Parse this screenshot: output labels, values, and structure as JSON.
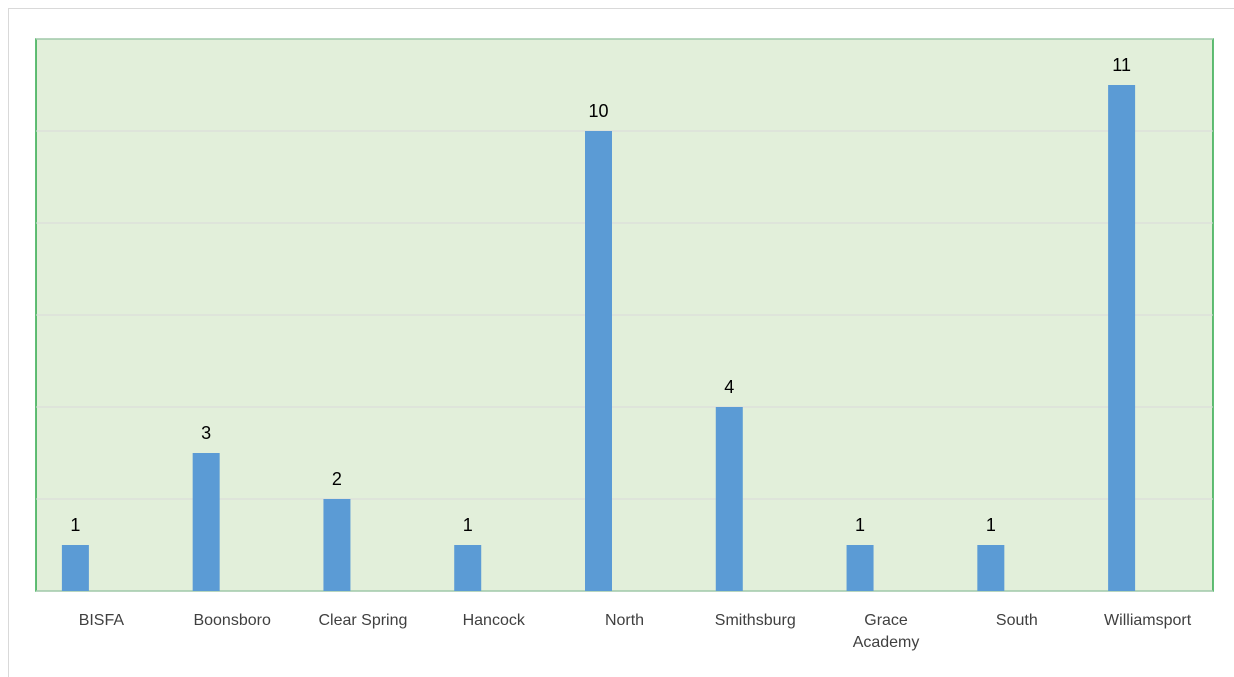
{
  "chart_data": {
    "type": "bar",
    "categories": [
      "BISFA",
      "Boonsboro",
      "Clear Spring",
      "Hancock",
      "North",
      "Smithsburg",
      "Grace Academy",
      "South",
      "Williamsport"
    ],
    "values": [
      1,
      3,
      2,
      1,
      10,
      4,
      1,
      1,
      11
    ],
    "color": "#5b9bd5",
    "ylim": [
      0,
      12
    ],
    "yticks": [
      0,
      2,
      4,
      6,
      8,
      10,
      12
    ],
    "grid": true
  }
}
